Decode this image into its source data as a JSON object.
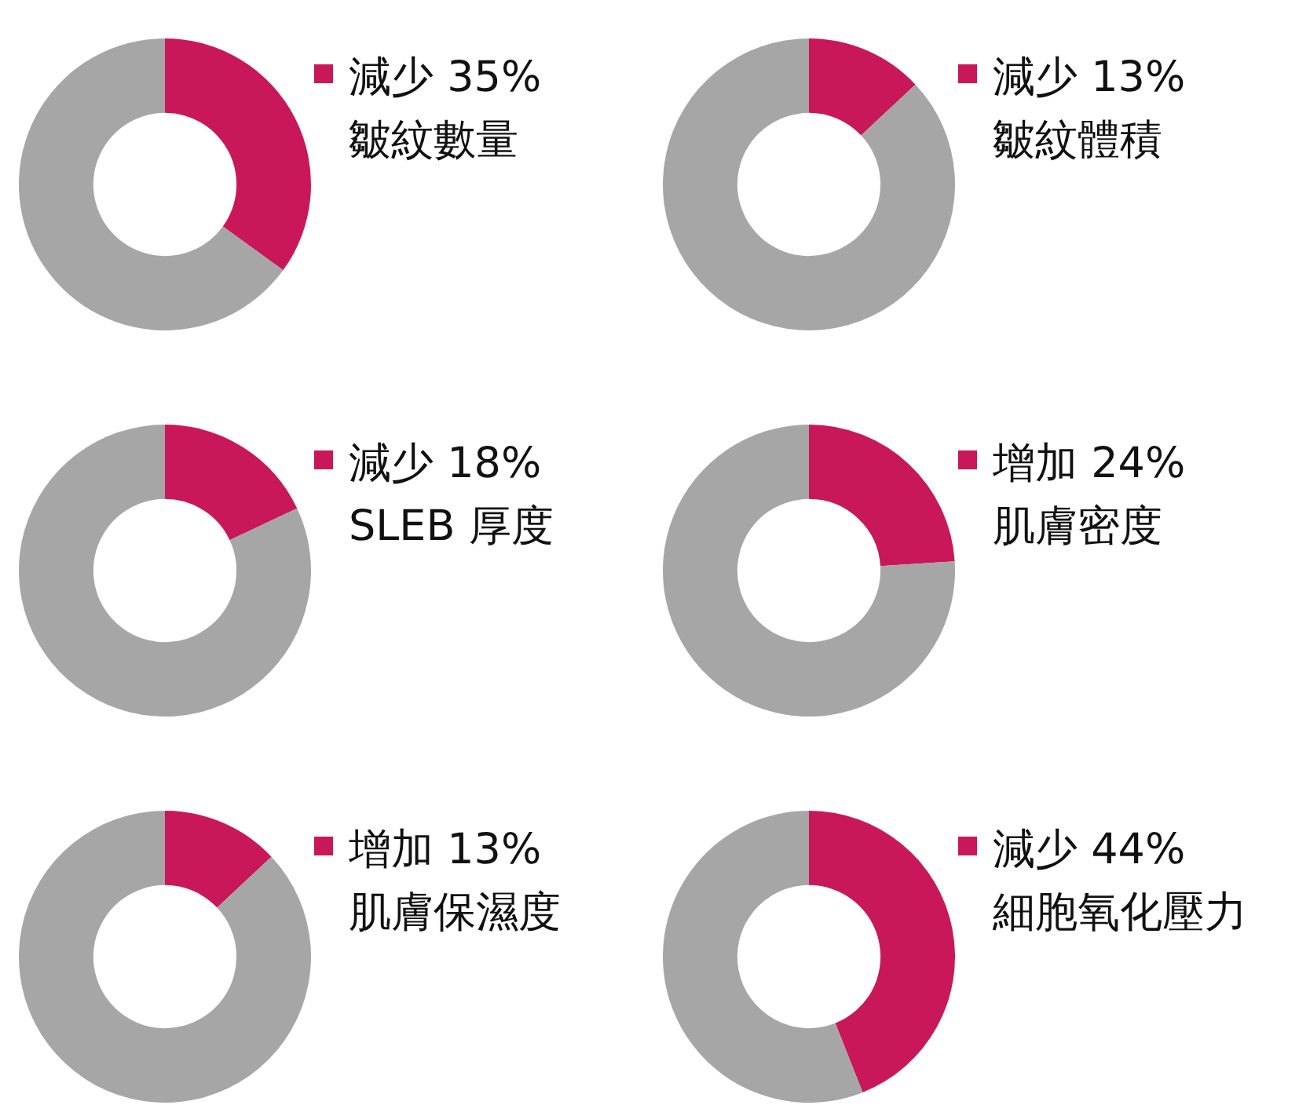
{
  "chart_data": [
    {
      "type": "donut",
      "categories": [
        "減少 35%",
        null
      ],
      "values": [
        35,
        65
      ],
      "colors": [
        "#c8185a",
        "#a6a6a6"
      ],
      "legend": "right",
      "annotations": [
        "皺紋數量"
      ]
    },
    {
      "type": "donut",
      "categories": [
        "減少 13%",
        null
      ],
      "values": [
        13,
        87
      ],
      "colors": [
        "#c8185a",
        "#a6a6a6"
      ],
      "legend": "right",
      "annotations": [
        "皺紋體積"
      ]
    },
    {
      "type": "donut",
      "categories": [
        "減少 18%",
        null
      ],
      "values": [
        18,
        82
      ],
      "colors": [
        "#c8185a",
        "#a6a6a6"
      ],
      "legend": "right",
      "annotations": [
        "SLEB 厚度"
      ]
    },
    {
      "type": "donut",
      "categories": [
        "增加 24%",
        null
      ],
      "values": [
        24,
        76
      ],
      "colors": [
        "#c8185a",
        "#a6a6a6"
      ],
      "legend": "right",
      "annotations": [
        "肌膚密度"
      ]
    },
    {
      "type": "donut",
      "categories": [
        "增加 13%",
        null
      ],
      "values": [
        13,
        87
      ],
      "colors": [
        "#c8185a",
        "#a6a6a6"
      ],
      "legend": "right",
      "annotations": [
        "肌膚保濕度"
      ]
    },
    {
      "type": "donut",
      "categories": [
        "減少 44%",
        null
      ],
      "values": [
        44,
        56
      ],
      "colors": [
        "#c8185a",
        "#a6a6a6"
      ],
      "legend": "right",
      "annotations": [
        "細胞氧化壓力"
      ]
    }
  ]
}
